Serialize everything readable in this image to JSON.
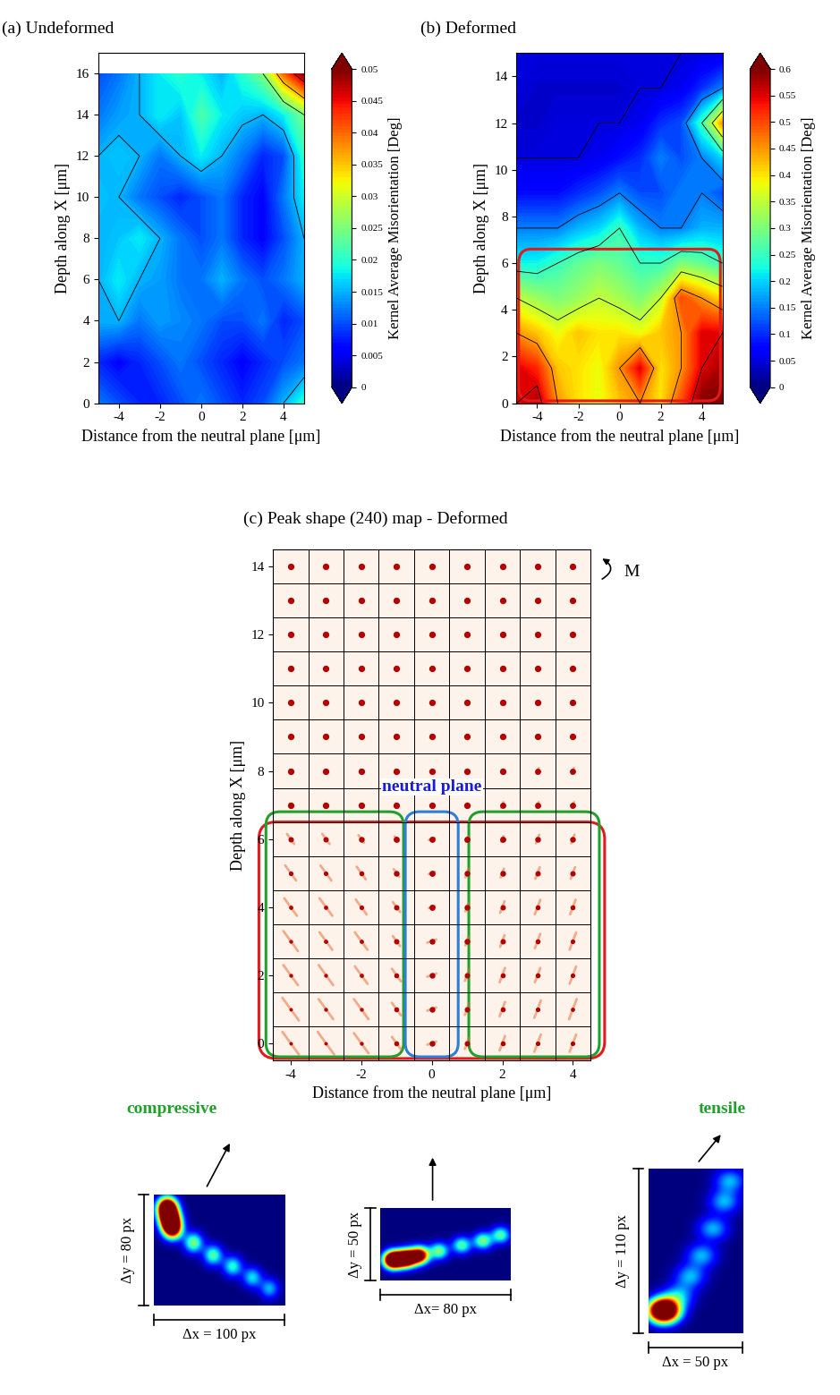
{
  "chart_data": [
    {
      "type": "contour",
      "title": "(a) Undeformed",
      "x_label": "Distance from the neutral plane [μm]",
      "y_label": "Depth along X [μm]",
      "x": [
        -5,
        -4,
        -3,
        -2,
        -1,
        0,
        1,
        2,
        3,
        4,
        5
      ],
      "y": [
        0,
        2,
        4,
        6,
        8,
        10,
        12,
        14,
        16
      ],
      "cells": [
        [
          0.012,
          0.01,
          0.008,
          0.008,
          0.01,
          0.012,
          0.01,
          0.008,
          0.01,
          0.015,
          0.02
        ],
        [
          0.008,
          0.006,
          0.008,
          0.01,
          0.012,
          0.01,
          0.008,
          0.006,
          0.008,
          0.01,
          0.012
        ],
        [
          0.015,
          0.015,
          0.012,
          0.014,
          0.013,
          0.012,
          0.01,
          0.01,
          0.012,
          0.008,
          0.01
        ],
        [
          0.015,
          0.018,
          0.015,
          0.014,
          0.012,
          0.012,
          0.015,
          0.012,
          0.01,
          0.012,
          0.015
        ],
        [
          0.015,
          0.016,
          0.018,
          0.015,
          0.012,
          0.01,
          0.012,
          0.008,
          0.006,
          0.01,
          0.015
        ],
        [
          0.016,
          0.015,
          0.012,
          0.01,
          0.008,
          0.01,
          0.012,
          0.008,
          0.006,
          0.012,
          0.018
        ],
        [
          0.015,
          0.016,
          0.015,
          0.012,
          0.015,
          0.018,
          0.015,
          0.012,
          0.008,
          0.01,
          0.02
        ],
        [
          0.012,
          0.014,
          0.015,
          0.018,
          0.016,
          0.022,
          0.018,
          0.016,
          0.015,
          0.018,
          0.025
        ],
        [
          0.01,
          0.012,
          0.015,
          0.018,
          0.02,
          0.018,
          0.015,
          0.02,
          0.025,
          0.04,
          0.05
        ]
      ],
      "xlim": [
        -5,
        5
      ],
      "ylim": [
        0,
        17
      ],
      "xticks": [
        -4,
        -2,
        0,
        2,
        4
      ],
      "yticks": [
        0,
        2,
        4,
        6,
        8,
        10,
        12,
        14,
        16
      ],
      "colorbar_label": "Kernel Average Misorientation [Deg]",
      "colorbar_range": [
        0,
        0.05
      ],
      "colorbar_ticks": [
        0,
        0.005,
        0.01,
        0.015,
        0.02,
        0.025,
        0.03,
        0.035,
        0.04,
        0.045,
        0.05
      ]
    },
    {
      "type": "contour",
      "title": "(b) Deformed",
      "x_label": "Distance from the neutral plane [μm]",
      "y_label": "Depth along X [μm]",
      "x": [
        -5,
        -4,
        -3,
        -2,
        -1,
        0,
        1,
        2,
        3,
        4,
        5
      ],
      "y": [
        0,
        1.5,
        3,
        4.5,
        6,
        7.5,
        9,
        10.5,
        12,
        13.5,
        15
      ],
      "cells": [
        [
          0.55,
          0.58,
          0.45,
          0.4,
          0.38,
          0.42,
          0.45,
          0.4,
          0.5,
          0.6,
          0.6
        ],
        [
          0.55,
          0.52,
          0.42,
          0.4,
          0.38,
          0.45,
          0.55,
          0.4,
          0.45,
          0.55,
          0.58
        ],
        [
          0.45,
          0.42,
          0.38,
          0.42,
          0.4,
          0.4,
          0.38,
          0.42,
          0.45,
          0.55,
          0.55
        ],
        [
          0.35,
          0.32,
          0.3,
          0.32,
          0.35,
          0.33,
          0.3,
          0.35,
          0.5,
          0.45,
          0.4
        ],
        [
          0.22,
          0.22,
          0.25,
          0.28,
          0.3,
          0.28,
          0.25,
          0.25,
          0.3,
          0.28,
          0.25
        ],
        [
          0.15,
          0.15,
          0.15,
          0.18,
          0.2,
          0.25,
          0.18,
          0.15,
          0.15,
          0.18,
          0.18
        ],
        [
          0.08,
          0.08,
          0.08,
          0.1,
          0.12,
          0.15,
          0.12,
          0.12,
          0.15,
          0.15,
          0.12
        ],
        [
          0.05,
          0.05,
          0.05,
          0.05,
          0.06,
          0.08,
          0.1,
          0.15,
          0.12,
          0.15,
          0.2
        ],
        [
          0.04,
          0.04,
          0.05,
          0.05,
          0.05,
          0.05,
          0.06,
          0.1,
          0.12,
          0.25,
          0.45
        ],
        [
          0.05,
          0.04,
          0.04,
          0.04,
          0.04,
          0.04,
          0.05,
          0.05,
          0.06,
          0.1,
          0.15
        ],
        [
          0.05,
          0.05,
          0.05,
          0.05,
          0.05,
          0.05,
          0.05,
          0.05,
          0.05,
          0.05,
          0.05
        ]
      ],
      "xlim": [
        -5,
        5
      ],
      "ylim": [
        0,
        15
      ],
      "xticks": [
        -4,
        -2,
        0,
        2,
        4
      ],
      "yticks": [
        0,
        2,
        4,
        6,
        8,
        10,
        12,
        14
      ],
      "colorbar_label": "Kernel Average Misorientation [Deg]",
      "colorbar_range": [
        0,
        0.6
      ],
      "colorbar_ticks": [
        0,
        0.05,
        0.1,
        0.15,
        0.2,
        0.25,
        0.3,
        0.35,
        0.4,
        0.45,
        0.5,
        0.55,
        0.6
      ]
    },
    {
      "type": "peak_map",
      "title": "(c) Peak shape (240) map - Deformed",
      "x_label": "Distance from the neutral plane [μm]",
      "y_label": "Depth along X [μm]",
      "x": [
        -4,
        -3,
        -2,
        -1,
        0,
        1,
        2,
        3,
        4
      ],
      "y": [
        0,
        1,
        2,
        3,
        4,
        5,
        6,
        7,
        8,
        9,
        10,
        11,
        12,
        13,
        14
      ],
      "peak_spread": [
        [
          0.9,
          0.9,
          0.8,
          0.5,
          0.3,
          0.4,
          0.5,
          0.6,
          0.6
        ],
        [
          0.9,
          0.8,
          0.8,
          0.5,
          0.3,
          0.4,
          0.5,
          0.6,
          0.7
        ],
        [
          0.8,
          0.8,
          0.7,
          0.5,
          0.3,
          0.4,
          0.5,
          0.5,
          0.6
        ],
        [
          0.8,
          0.7,
          0.7,
          0.4,
          0.3,
          0.3,
          0.4,
          0.5,
          0.6
        ],
        [
          0.7,
          0.7,
          0.6,
          0.4,
          0.2,
          0.3,
          0.4,
          0.5,
          0.5
        ],
        [
          0.6,
          0.6,
          0.5,
          0.3,
          0.2,
          0.3,
          0.3,
          0.4,
          0.4
        ],
        [
          0.4,
          0.4,
          0.3,
          0.2,
          0.2,
          0.2,
          0.2,
          0.3,
          0.3
        ],
        [
          0.1,
          0.1,
          0.1,
          0.1,
          0.1,
          0.1,
          0.2,
          0.2,
          0.2
        ],
        [
          0.1,
          0.1,
          0.1,
          0.1,
          0.1,
          0.1,
          0.1,
          0.2,
          0.2
        ],
        [
          0.1,
          0.1,
          0.1,
          0.1,
          0.1,
          0.1,
          0.1,
          0.1,
          0.1
        ],
        [
          0.1,
          0.1,
          0.1,
          0.1,
          0.1,
          0.1,
          0.1,
          0.1,
          0.1
        ],
        [
          0.1,
          0.1,
          0.1,
          0.1,
          0.1,
          0.1,
          0.1,
          0.1,
          0.1
        ],
        [
          0.1,
          0.1,
          0.1,
          0.1,
          0.1,
          0.1,
          0.1,
          0.1,
          0.1
        ],
        [
          0.1,
          0.1,
          0.1,
          0.1,
          0.1,
          0.1,
          0.1,
          0.1,
          0.1
        ],
        [
          0.1,
          0.1,
          0.1,
          0.1,
          0.1,
          0.1,
          0.1,
          0.1,
          0.1
        ]
      ],
      "xlim": [
        -4.5,
        4.5
      ],
      "ylim": [
        -0.5,
        14.5
      ],
      "xticks": [
        -4,
        -2,
        0,
        2,
        4
      ],
      "yticks": [
        0,
        2,
        4,
        6,
        8,
        10,
        12,
        14
      ],
      "annotations": {
        "neutral_plane": "neutral plane",
        "compressive": "compressive",
        "tensile": "tensile",
        "moment": "M"
      },
      "insets": [
        {
          "width": 100,
          "height": 80,
          "x_label": "Δx = 100 px",
          "y_label": "Δy = 80 px",
          "blobs": [
            [
              10,
              70,
              1.6
            ],
            [
              12,
              62,
              1.6
            ],
            [
              14,
              55,
              1.2
            ],
            [
              30,
              45,
              0.5
            ],
            [
              45,
              36,
              0.45
            ],
            [
              60,
              28,
              0.4
            ],
            [
              75,
              20,
              0.35
            ],
            [
              88,
              12,
              0.3
            ]
          ]
        },
        {
          "width": 80,
          "height": 50,
          "x_label": "Δx= 80 px",
          "y_label": "Δy = 50 px",
          "blobs": [
            [
              8,
              14,
              1.8
            ],
            [
              16,
              15,
              1.6
            ],
            [
              24,
              17,
              1.2
            ],
            [
              36,
              20,
              0.5
            ],
            [
              50,
              24,
              0.45
            ],
            [
              63,
              27,
              0.5
            ],
            [
              74,
              31,
              0.45
            ]
          ]
        },
        {
          "width": 50,
          "height": 110,
          "x_label": "Δx = 50 px",
          "y_label": "Δy = 110 px",
          "blobs": [
            [
              8,
              15,
              1.8
            ],
            [
              16,
              25,
              0.3
            ],
            [
              22,
              38,
              0.3
            ],
            [
              28,
              52,
              0.3
            ],
            [
              34,
              70,
              0.3
            ],
            [
              40,
              88,
              0.3
            ],
            [
              43,
              102,
              0.3
            ]
          ]
        }
      ]
    }
  ]
}
